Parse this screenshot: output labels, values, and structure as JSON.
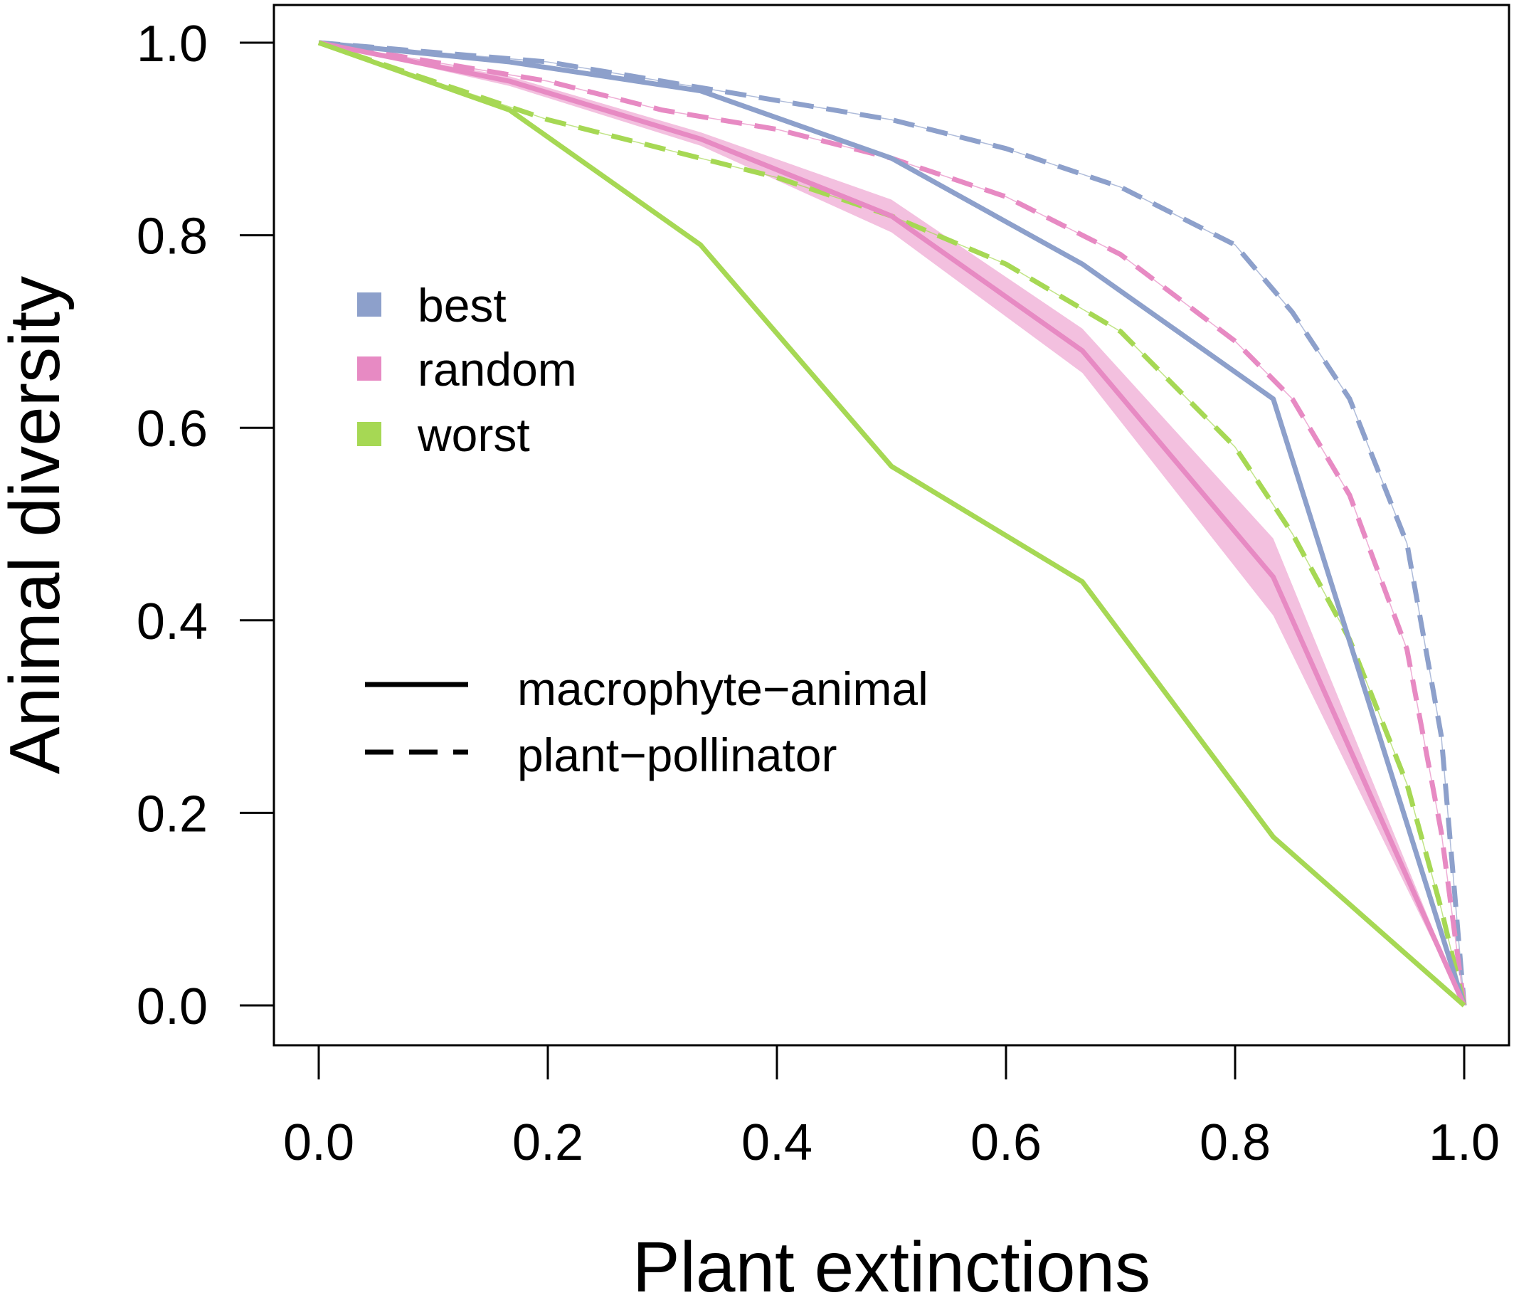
{
  "chart_data": {
    "type": "line",
    "xlabel": "Plant extinctions",
    "ylabel": "Animal diversity",
    "xlim": [
      0,
      1
    ],
    "ylim": [
      0,
      1
    ],
    "xticks": [
      "0.0",
      "0.2",
      "0.4",
      "0.6",
      "0.8",
      "1.0"
    ],
    "yticks": [
      "0.0",
      "0.2",
      "0.4",
      "0.6",
      "0.8",
      "1.0"
    ],
    "grid": false,
    "legend_color": {
      "placement": "upper-left",
      "entries": [
        {
          "label": "best",
          "color": "#8DA0CB"
        },
        {
          "label": "random",
          "color": "#E78AC3"
        },
        {
          "label": "worst",
          "color": "#A6D854"
        }
      ]
    },
    "legend_linetype": {
      "placement": "middle-left",
      "entries": [
        {
          "label": "macrophyte−animal",
          "style": "solid"
        },
        {
          "label": "plant−pollinator",
          "style": "dashed"
        }
      ]
    },
    "band_color": "#F3C0DF",
    "series": [
      {
        "network": "plant−pollinator",
        "scenario": "best",
        "style": "dashed",
        "color": "#8DA0CB",
        "x": [
          0,
          0.1,
          0.2,
          0.3,
          0.4,
          0.5,
          0.6,
          0.7,
          0.75,
          0.8,
          0.85,
          0.9,
          0.95,
          0.98,
          1.0
        ],
        "y": [
          1.0,
          0.99,
          0.98,
          0.96,
          0.94,
          0.92,
          0.89,
          0.85,
          0.82,
          0.79,
          0.72,
          0.63,
          0.48,
          0.28,
          0.0
        ]
      },
      {
        "network": "plant−pollinator",
        "scenario": "random",
        "style": "dashed",
        "color": "#E78AC3",
        "x": [
          0,
          0.1,
          0.2,
          0.3,
          0.4,
          0.5,
          0.6,
          0.7,
          0.8,
          0.85,
          0.9,
          0.95,
          0.98,
          1.0
        ],
        "y": [
          1.0,
          0.98,
          0.96,
          0.93,
          0.91,
          0.88,
          0.84,
          0.78,
          0.69,
          0.63,
          0.53,
          0.37,
          0.18,
          0.0
        ]
      },
      {
        "network": "plant−pollinator",
        "scenario": "worst",
        "style": "dashed",
        "color": "#A6D854",
        "x": [
          0,
          0.1,
          0.2,
          0.3,
          0.4,
          0.5,
          0.6,
          0.7,
          0.8,
          0.85,
          0.9,
          0.95,
          0.98,
          1.0
        ],
        "y": [
          1.0,
          0.96,
          0.92,
          0.89,
          0.86,
          0.82,
          0.77,
          0.7,
          0.58,
          0.49,
          0.38,
          0.23,
          0.1,
          0.0
        ]
      },
      {
        "network": "macrophyte−animal",
        "scenario": "best",
        "style": "solid",
        "color": "#8DA0CB",
        "x": [
          0,
          0.1667,
          0.3333,
          0.5,
          0.6667,
          0.8333,
          1.0
        ],
        "y": [
          1.0,
          0.98,
          0.95,
          0.88,
          0.77,
          0.63,
          0.0
        ]
      },
      {
        "network": "macrophyte−animal",
        "scenario": "random",
        "style": "solid",
        "color": "#E78AC3",
        "x": [
          0,
          0.1667,
          0.3333,
          0.5,
          0.6667,
          0.8333,
          1.0
        ],
        "y": [
          1.0,
          0.96,
          0.9,
          0.82,
          0.68,
          0.445,
          0.0
        ],
        "lower": [
          1.0,
          0.955,
          0.893,
          0.803,
          0.657,
          0.405,
          0.0
        ],
        "upper": [
          1.0,
          0.965,
          0.907,
          0.837,
          0.703,
          0.485,
          0.0
        ]
      },
      {
        "network": "macrophyte−animal",
        "scenario": "worst",
        "style": "solid",
        "color": "#A6D854",
        "x": [
          0,
          0.1667,
          0.3333,
          0.5,
          0.6667,
          0.8333,
          1.0
        ],
        "y": [
          1.0,
          0.93,
          0.79,
          0.56,
          0.44,
          0.175,
          0.0
        ]
      }
    ]
  }
}
